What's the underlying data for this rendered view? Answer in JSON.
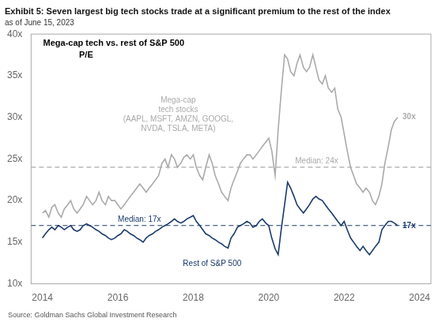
{
  "chart_data": {
    "type": "line",
    "title": "Exhibit 5: Seven largest big tech stocks trade at a significant premium to the rest of the index",
    "subtitle": "as of June 15, 2023",
    "chart_title": "Mega-cap tech vs. rest of S&P 500",
    "ylabel": "P/E",
    "source": "Source: Goldman Sachs Global Investment Research",
    "x": [
      2014.0,
      2014.08,
      2014.17,
      2014.25,
      2014.33,
      2014.42,
      2014.5,
      2014.58,
      2014.67,
      2014.75,
      2014.83,
      2014.92,
      2015.0,
      2015.08,
      2015.17,
      2015.25,
      2015.33,
      2015.42,
      2015.5,
      2015.58,
      2015.67,
      2015.75,
      2015.83,
      2015.92,
      2016.0,
      2016.08,
      2016.17,
      2016.25,
      2016.33,
      2016.42,
      2016.5,
      2016.58,
      2016.67,
      2016.75,
      2016.83,
      2016.92,
      2017.0,
      2017.08,
      2017.17,
      2017.25,
      2017.33,
      2017.42,
      2017.5,
      2017.58,
      2017.67,
      2017.75,
      2017.83,
      2017.92,
      2018.0,
      2018.08,
      2018.17,
      2018.25,
      2018.33,
      2018.42,
      2018.5,
      2018.58,
      2018.67,
      2018.75,
      2018.83,
      2018.92,
      2019.0,
      2019.08,
      2019.17,
      2019.25,
      2019.33,
      2019.42,
      2019.5,
      2019.58,
      2019.67,
      2019.75,
      2019.83,
      2019.92,
      2020.0,
      2020.08,
      2020.17,
      2020.25,
      2020.33,
      2020.42,
      2020.5,
      2020.58,
      2020.67,
      2020.75,
      2020.83,
      2020.92,
      2021.0,
      2021.08,
      2021.17,
      2021.25,
      2021.33,
      2021.42,
      2021.5,
      2021.58,
      2021.67,
      2021.75,
      2021.83,
      2021.92,
      2022.0,
      2022.08,
      2022.17,
      2022.25,
      2022.33,
      2022.42,
      2022.5,
      2022.58,
      2022.67,
      2022.75,
      2022.83,
      2022.92,
      2023.0,
      2023.08,
      2023.17,
      2023.25,
      2023.33,
      2023.42
    ],
    "series": [
      {
        "color": "#aaaaaa",
        "label": "Mega-cap\ntech stocks\n(AAPL, MSFT, AMZN, GOOGL,\nNVDA, TSLA, META)",
        "median": 24,
        "median_label": "Median: 24x",
        "end_label": "30x",
        "values": [
          18.5,
          18.8,
          18.0,
          19.2,
          19.5,
          18.5,
          18.0,
          19.0,
          19.5,
          20.0,
          19.0,
          18.5,
          19.0,
          19.5,
          20.5,
          20.0,
          19.5,
          20.0,
          21.0,
          20.0,
          19.5,
          20.5,
          20.0,
          20.0,
          19.5,
          19.0,
          19.5,
          20.0,
          20.5,
          21.0,
          21.5,
          22.0,
          21.5,
          21.0,
          21.5,
          22.0,
          22.5,
          23.0,
          24.5,
          25.0,
          24.0,
          25.5,
          25.0,
          24.0,
          24.5,
          25.2,
          25.5,
          25.0,
          25.5,
          24.0,
          23.0,
          22.5,
          24.0,
          25.5,
          24.5,
          23.0,
          22.0,
          21.0,
          20.5,
          20.0,
          21.5,
          22.5,
          23.5,
          24.5,
          25.0,
          25.5,
          25.5,
          25.0,
          25.5,
          26.0,
          26.5,
          27.0,
          27.5,
          26.0,
          23.0,
          28.5,
          33.0,
          37.5,
          37.0,
          35.5,
          35.0,
          36.5,
          37.5,
          36.0,
          35.5,
          36.0,
          37.5,
          36.0,
          34.5,
          34.0,
          35.0,
          33.5,
          33.0,
          33.5,
          31.0,
          30.0,
          28.0,
          26.0,
          24.0,
          23.0,
          22.0,
          21.5,
          21.0,
          21.5,
          21.0,
          20.0,
          19.5,
          20.5,
          22.0,
          24.5,
          26.5,
          28.5,
          29.5,
          30.0
        ]
      },
      {
        "color": "#1a3a6b",
        "label": "Rest of S&P 500",
        "median": 17,
        "median_label": "Median: 17x",
        "end_label": "17x",
        "values": [
          15.5,
          16.0,
          16.5,
          16.8,
          16.5,
          17.0,
          16.8,
          16.5,
          16.8,
          17.0,
          16.5,
          16.3,
          16.5,
          17.0,
          17.2,
          17.0,
          16.8,
          16.5,
          16.3,
          16.0,
          15.8,
          15.5,
          15.3,
          15.5,
          15.8,
          16.0,
          16.5,
          16.3,
          16.0,
          15.8,
          15.5,
          15.3,
          15.0,
          15.5,
          15.8,
          16.0,
          16.3,
          16.5,
          16.8,
          17.0,
          17.2,
          17.5,
          17.8,
          17.5,
          17.3,
          17.5,
          17.8,
          18.0,
          18.2,
          17.5,
          17.0,
          16.5,
          16.0,
          15.8,
          15.5,
          15.3,
          15.0,
          14.8,
          14.5,
          14.3,
          15.5,
          16.0,
          16.8,
          17.0,
          17.2,
          17.5,
          17.3,
          16.8,
          17.0,
          17.5,
          17.8,
          17.3,
          17.0,
          15.5,
          14.2,
          13.5,
          16.5,
          19.5,
          22.2,
          21.5,
          20.5,
          19.5,
          19.0,
          18.5,
          19.0,
          19.5,
          20.2,
          20.5,
          20.2,
          20.0,
          19.5,
          19.0,
          18.5,
          18.0,
          17.5,
          17.0,
          17.5,
          16.5,
          15.5,
          15.0,
          14.5,
          14.0,
          14.5,
          14.0,
          13.5,
          14.0,
          14.5,
          15.0,
          16.5,
          17.0,
          17.5,
          17.5,
          17.3,
          17.0
        ]
      }
    ],
    "xlim": [
      2013.7,
      2024.3
    ],
    "xticks": [
      2014,
      2016,
      2018,
      2020,
      2022,
      2024
    ],
    "ylim": [
      10,
      40
    ],
    "yticks": [
      {
        "value": 10,
        "label": "10x"
      },
      {
        "value": 15,
        "label": "15x"
      },
      {
        "value": 20,
        "label": "20x"
      },
      {
        "value": 25,
        "label": "25x"
      },
      {
        "value": 30,
        "label": "30x"
      },
      {
        "value": 35,
        "label": "35x"
      },
      {
        "value": 40,
        "label": "40x"
      }
    ],
    "grid": false
  }
}
